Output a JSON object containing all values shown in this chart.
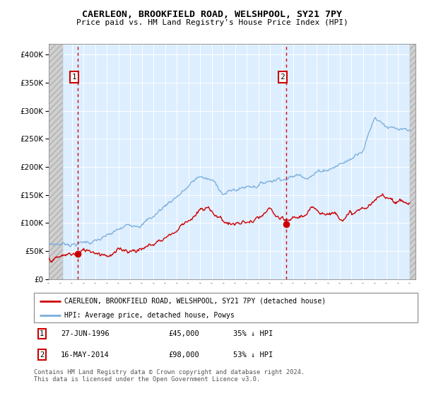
{
  "title": "CAERLEON, BROOKFIELD ROAD, WELSHPOOL, SY21 7PY",
  "subtitle": "Price paid vs. HM Land Registry's House Price Index (HPI)",
  "legend_entry1": "CAERLEON, BROOKFIELD ROAD, WELSHPOOL, SY21 7PY (detached house)",
  "legend_entry2": "HPI: Average price, detached house, Powys",
  "annotation1_date": "27-JUN-1996",
  "annotation1_price": "£45,000",
  "annotation1_hpi": "35% ↓ HPI",
  "annotation2_date": "16-MAY-2014",
  "annotation2_price": "£98,000",
  "annotation2_hpi": "53% ↓ HPI",
  "footnote": "Contains HM Land Registry data © Crown copyright and database right 2024.\nThis data is licensed under the Open Government Licence v3.0.",
  "hpi_color": "#7aaedc",
  "property_color": "#cc0000",
  "dashed_line_color": "#cc0000",
  "marker_color": "#cc0000",
  "annotation_box_color": "#cc0000",
  "background_color": "#ddeeff",
  "ylim": [
    0,
    420000
  ],
  "yticks": [
    0,
    50000,
    100000,
    150000,
    200000,
    250000,
    300000,
    350000,
    400000
  ],
  "sale1_x": 1996.5,
  "sale1_y": 45000,
  "sale2_x": 2014.38,
  "sale2_y": 98000,
  "xmin": 1994,
  "xmax": 2025.5
}
